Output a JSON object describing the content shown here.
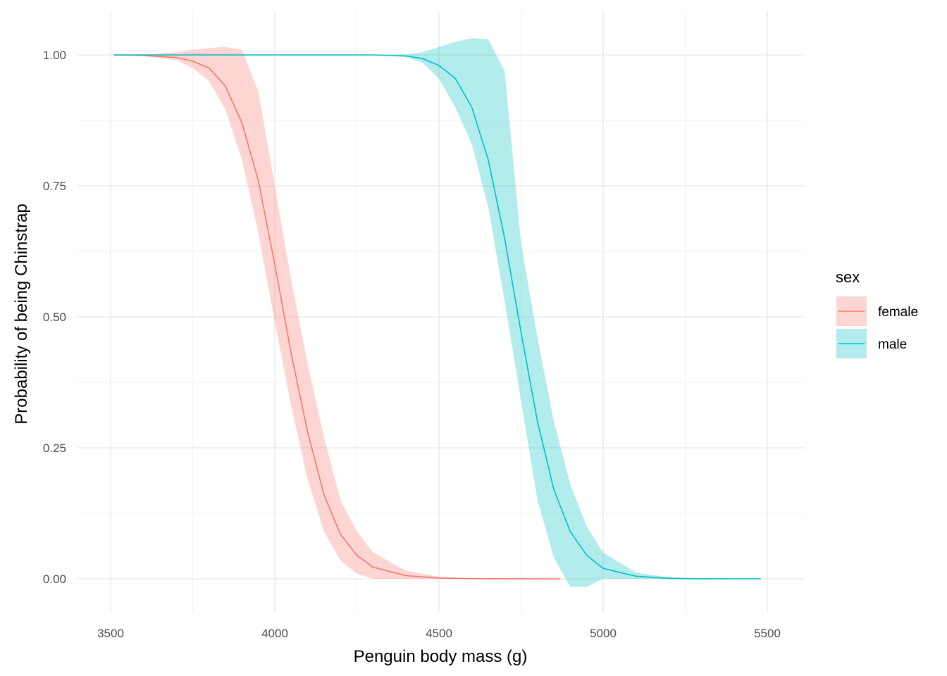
{
  "chart_data": {
    "type": "line",
    "xlabel": "Penguin body mass (g)",
    "ylabel": "Probability of being Chinstrap",
    "xlim": [
      3500,
      5500
    ],
    "ylim": [
      0,
      1
    ],
    "x_ticks": [
      3500,
      4000,
      4500,
      5000,
      5500
    ],
    "x_tick_labels": [
      "3500",
      "4000",
      "4500",
      "5000",
      "5500"
    ],
    "y_ticks": [
      0,
      0.25,
      0.5,
      0.75,
      1
    ],
    "y_tick_labels": [
      "0.00",
      "0.25",
      "0.50",
      "0.75",
      "1.00"
    ],
    "grid": true,
    "legend": {
      "title": "sex",
      "position": "right"
    },
    "series": [
      {
        "name": "female",
        "color": "#F8766D",
        "x": [
          3510,
          3600,
          3700,
          3750,
          3800,
          3850,
          3900,
          3950,
          4000,
          4050,
          4100,
          4150,
          4200,
          4250,
          4300,
          4400,
          4500,
          4600,
          4700,
          4800,
          4870
        ],
        "y": [
          1.0,
          0.999,
          0.995,
          0.988,
          0.975,
          0.94,
          0.87,
          0.76,
          0.6,
          0.43,
          0.28,
          0.16,
          0.085,
          0.045,
          0.022,
          0.006,
          0.0015,
          0.0004,
          0.0001,
          0.0,
          0.0
        ],
        "lower": [
          1.0,
          0.998,
          0.99,
          0.975,
          0.95,
          0.895,
          0.8,
          0.66,
          0.49,
          0.33,
          0.19,
          0.09,
          0.035,
          0.01,
          0.0,
          0.0,
          0.0,
          0.0,
          0.0,
          0.0,
          0.0
        ],
        "upper": [
          1.0,
          1.0,
          1.005,
          1.01,
          1.013,
          1.015,
          1.01,
          0.93,
          0.75,
          0.57,
          0.41,
          0.27,
          0.15,
          0.09,
          0.05,
          0.015,
          0.004,
          0.001,
          0.0003,
          0.0001,
          0.0
        ]
      },
      {
        "name": "male",
        "color": "#00BFC4",
        "x": [
          3510,
          4000,
          4200,
          4300,
          4400,
          4450,
          4500,
          4550,
          4600,
          4650,
          4700,
          4750,
          4800,
          4850,
          4900,
          4950,
          5000,
          5100,
          5200,
          5300,
          5400,
          5480
        ],
        "y": [
          1.0,
          1.0,
          1.0,
          1.0,
          0.998,
          0.993,
          0.98,
          0.955,
          0.9,
          0.8,
          0.65,
          0.47,
          0.3,
          0.17,
          0.09,
          0.045,
          0.02,
          0.005,
          0.001,
          0.0002,
          0.0,
          0.0
        ],
        "lower": [
          1.0,
          1.0,
          1.0,
          1.0,
          0.996,
          0.985,
          0.955,
          0.9,
          0.83,
          0.71,
          0.53,
          0.34,
          0.15,
          0.04,
          -0.015,
          -0.015,
          0.0,
          0.0,
          0.0,
          0.0,
          0.0,
          0.0
        ],
        "upper": [
          1.0,
          1.0,
          1.0,
          1.0,
          1.001,
          1.005,
          1.015,
          1.025,
          1.032,
          1.03,
          0.97,
          0.64,
          0.46,
          0.3,
          0.18,
          0.1,
          0.05,
          0.012,
          0.003,
          0.0005,
          0.0,
          0.0
        ]
      }
    ]
  }
}
